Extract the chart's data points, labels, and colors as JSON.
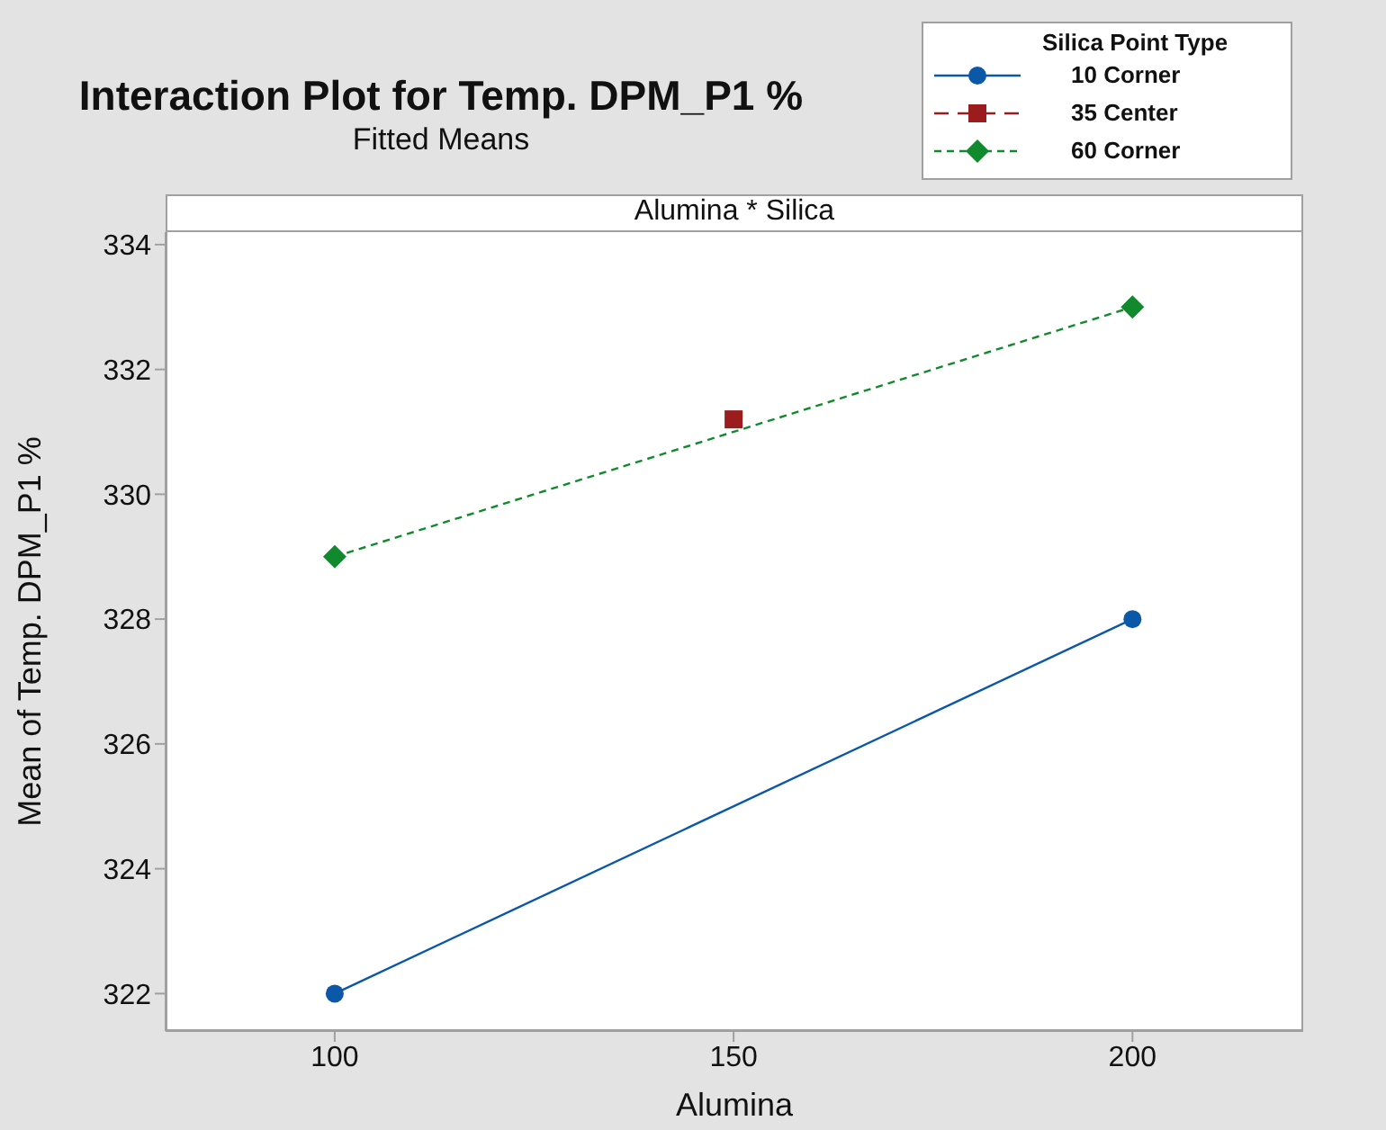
{
  "chart_data": {
    "type": "line",
    "title": "Interaction Plot for Temp. DPM_P1 %",
    "subtitle": "Fitted Means",
    "xlabel": "Alumina",
    "ylabel": "Mean of Temp. DPM_P1 %",
    "legend_title": "Silica Point Type",
    "annotations": [
      "Alumina * Silica"
    ],
    "series": [
      {
        "name": "10 Corner",
        "color": "#0b57a8",
        "x": [
          100,
          200
        ],
        "values": [
          322,
          328
        ],
        "marker": "circle",
        "line_style": "solid"
      },
      {
        "name": "35 Center",
        "color": "#9b1c1c",
        "x": [
          150
        ],
        "values": [
          331.2
        ],
        "marker": "square",
        "line_style": "dashed"
      },
      {
        "name": "60 Corner",
        "color": "#118a2e",
        "x": [
          100,
          200
        ],
        "values": [
          329,
          333
        ],
        "marker": "diamond",
        "line_style": "dotted"
      }
    ],
    "xlim": [
      78.8,
      221.4
    ],
    "xticks": [
      100,
      150,
      200
    ],
    "ylim": [
      321.4,
      334.2
    ],
    "yticks": [
      322,
      324,
      326,
      328,
      330,
      332,
      334
    ],
    "grid": false,
    "legend": "top right"
  }
}
